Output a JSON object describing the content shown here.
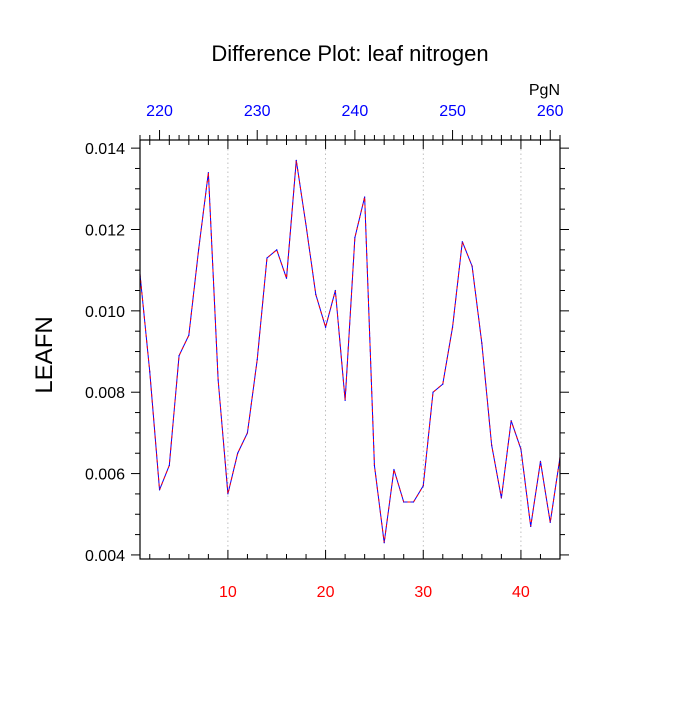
{
  "chart_data": {
    "type": "line",
    "title": "Difference Plot: leaf nitrogen",
    "xlabel": "",
    "ylabel": "LEAFN",
    "top_axis_unit": "PgN",
    "xlim": [
      1,
      44
    ],
    "ylim": [
      0.0039,
      0.0142
    ],
    "x_ticks": [
      10,
      20,
      30,
      40
    ],
    "x_tick_labels": [
      "10",
      "20",
      "30",
      "40"
    ],
    "y_ticks": [
      0.004,
      0.006,
      0.008,
      0.01,
      0.012,
      0.014
    ],
    "y_tick_labels": [
      "0.004",
      "0.006",
      "0.008",
      "0.010",
      "0.012",
      "0.014"
    ],
    "top_ticks": [
      220,
      230,
      240,
      250,
      260
    ],
    "top_tick_labels": [
      "220",
      "230",
      "240",
      "250",
      "260"
    ],
    "top_tick_positions_x": [
      3,
      13,
      23,
      33,
      43
    ],
    "grid": "vertical dotted lines at bottom x ticks",
    "colors": {
      "bottom_tick_labels": "#ff0000",
      "top_tick_labels": "#0000ff",
      "series_blue": "#0000ff",
      "series_red": "#ff0000",
      "grid": "#b0b0b0",
      "frame": "#000000"
    },
    "x": [
      1,
      2,
      3,
      4,
      5,
      6,
      7,
      8,
      9,
      10,
      11,
      12,
      13,
      14,
      15,
      16,
      17,
      18,
      19,
      20,
      21,
      22,
      23,
      24,
      25,
      26,
      27,
      28,
      29,
      30,
      31,
      32,
      33,
      34,
      35,
      36,
      37,
      38,
      39,
      40,
      41,
      42,
      43,
      44
    ],
    "series": [
      {
        "values": [
          0.0109,
          0.0085,
          0.0056,
          0.0062,
          0.0089,
          0.0094,
          0.0115,
          0.0134,
          0.0083,
          0.0055,
          0.0065,
          0.007,
          0.0088,
          0.0113,
          0.0115,
          0.0108,
          0.0137,
          0.0121,
          0.0104,
          0.0096,
          0.0105,
          0.0078,
          0.0118,
          0.0128,
          0.0062,
          0.0043,
          0.0061,
          0.0053,
          0.0053,
          0.0057,
          0.008,
          0.0082,
          0.0096,
          0.0117,
          0.0111,
          0.0092,
          0.0067,
          0.0054,
          0.0073,
          0.0066,
          0.0047,
          0.0063,
          0.0048,
          0.0064
        ]
      }
    ]
  }
}
